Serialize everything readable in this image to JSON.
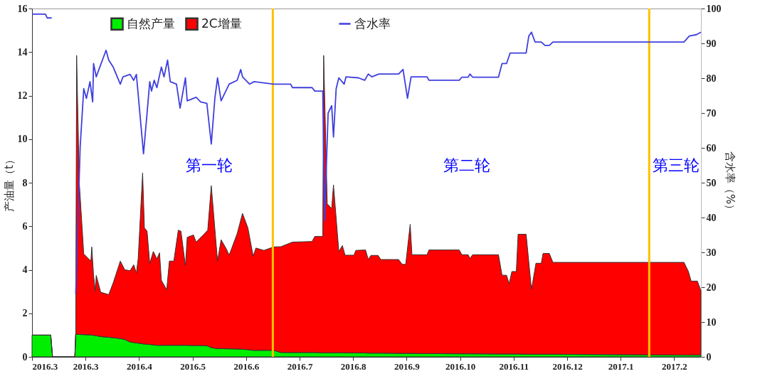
{
  "chart_data": {
    "type": "area",
    "stacked": true,
    "ylabel": "产油量（t）",
    "y2label": "含水率（%）",
    "x": [
      "2016-03-01",
      "2016-03-11T12:00",
      "2016-03-12T12:00",
      "2016-03-25",
      "2016-03-25T12:00",
      "2016-03-26",
      "2016-03-27T12:00",
      "2016-03-30",
      "2016-04-03",
      "2016-04-03T12:00",
      "2016-04-04T12:00",
      "2016-04-05T12:00",
      "2016-04-06",
      "2016-04-08T12:00",
      "2016-04-13",
      "2016-04-15T12:00",
      "2016-04-19T12:00",
      "2016-04-22",
      "2016-04-25",
      "2016-04-27",
      "2016-04-28T12:00",
      "2016-04-29T12:00",
      "2016-05-02",
      "2016-05-03",
      "2016-05-04T12:00",
      "2016-05-06",
      "2016-05-08",
      "2016-05-10",
      "2016-05-11T12:00",
      "2016-05-12T12:00",
      "2016-05-15T12:00",
      "2016-05-17",
      "2016-05-19T12:00",
      "2016-05-22",
      "2016-05-23T12:00",
      "2016-05-26",
      "2016-05-27",
      "2016-05-30T12:00",
      "2016-06-01",
      "2016-06-05",
      "2016-06-07T12:00",
      "2016-06-09T12:00",
      "2016-06-13",
      "2016-06-15",
      "2016-06-18",
      "2016-06-19T12:00",
      "2016-06-24",
      "2016-06-27",
      "2016-06-30",
      "2016-07-03",
      "2016-07-04T12:00",
      "2016-07-09",
      "2016-07-14T12:00",
      "2016-07-18T12:00",
      "2016-07-25",
      "2016-08-05",
      "2016-08-06T12:00",
      "2016-08-11",
      "2016-08-11T12:00",
      "2016-08-13T12:00",
      "2016-08-16",
      "2016-08-17",
      "2016-08-20",
      "2016-08-22",
      "2016-08-23T12:00",
      "2016-08-28T12:00",
      "2016-08-29T12:00",
      "2016-09-04",
      "2016-09-05T12:00",
      "2016-09-07",
      "2016-09-11",
      "2016-09-12T12:00",
      "2016-09-22T12:00",
      "2016-09-24T12:00",
      "2016-09-26T12:00",
      "2016-09-29",
      "2016-09-30",
      "2016-10-08T12:00",
      "2016-10-09T12:00",
      "2016-10-26T12:00",
      "2016-10-28",
      "2016-10-31T12:00",
      "2016-11-01T12:00",
      "2016-11-03",
      "2016-11-17T12:00",
      "2016-11-19T12:00",
      "2016-11-22",
      "2016-11-23T12:00",
      "2016-11-25",
      "2016-11-27T12:00",
      "2016-11-28T12:00",
      "2016-12-03",
      "2016-12-06",
      "2016-12-08T12:00",
      "2016-12-11T12:00",
      "2016-12-12T12:00",
      "2016-12-16",
      "2016-12-18",
      "2017-03-01T12:00",
      "2017-03-04",
      "2017-03-05T12:00",
      "2017-03-09",
      "2017-03-11"
    ],
    "series": [
      {
        "name": "自然产量",
        "color": "#00ee00",
        "values": [
          1.0,
          1.0,
          0,
          0,
          1.04,
          1.04,
          1.03,
          1.02,
          1.01,
          1.0,
          0.99,
          0.98,
          0.97,
          0.93,
          0.9,
          0.88,
          0.84,
          0.8,
          0.68,
          0.66,
          0.64,
          0.63,
          0.6,
          0.59,
          0.58,
          0.57,
          0.55,
          0.53,
          0.53,
          0.53,
          0.53,
          0.53,
          0.53,
          0.53,
          0.53,
          0.53,
          0.53,
          0.52,
          0.52,
          0.52,
          0.5,
          0.42,
          0.38,
          0.38,
          0.37,
          0.37,
          0.36,
          0.35,
          0.33,
          0.3,
          0.3,
          0.3,
          0.3,
          0.2,
          0.2,
          0.2,
          0.2,
          0.19,
          0.19,
          0.19,
          0.19,
          0.19,
          0.19,
          0.19,
          0.19,
          0.18,
          0.18,
          0.18,
          0.17,
          0.17,
          0.17,
          0.17,
          0.16,
          0.16,
          0.16,
          0.16,
          0.16,
          0.15,
          0.15,
          0.14,
          0.14,
          0.14,
          0.14,
          0.14,
          0.13,
          0.13,
          0.13,
          0.13,
          0.13,
          0.13,
          0.13,
          0.12,
          0.12,
          0.12,
          0.12,
          0.12,
          0.12,
          0.12,
          0.08,
          0.08,
          0.08,
          0.08,
          0.08
        ]
      },
      {
        "name": "2C增量",
        "color": "#ff0000",
        "values": [
          0,
          0,
          0,
          0,
          0,
          12.81,
          6.97,
          3.71,
          3.39,
          4.05,
          2.75,
          2.04,
          2.77,
          2.04,
          1.96,
          2.52,
          3.56,
          3.2,
          3.28,
          3.57,
          3.21,
          3.87,
          7.85,
          5.34,
          5.19,
          3.72,
          4.29,
          3.97,
          4.25,
          2.99,
          2.55,
          3.87,
          3.87,
          5.29,
          5.24,
          3.65,
          4.96,
          5.08,
          4.75,
          5.08,
          5.32,
          7.44,
          4.02,
          5.0,
          4.58,
          4.3,
          5.3,
          6.24,
          5.6,
          4.32,
          4.7,
          4.59,
          4.75,
          4.86,
          5.07,
          5.1,
          5.33,
          5.34,
          13.66,
          6.84,
          6.62,
          7.71,
          4.65,
          4.92,
          4.48,
          4.49,
          4.71,
          4.73,
          4.3,
          4.49,
          4.49,
          4.3,
          4.31,
          4.09,
          4.09,
          5.93,
          4.53,
          4.54,
          4.76,
          4.77,
          4.55,
          4.55,
          4.38,
          4.55,
          4.56,
          3.62,
          3.62,
          3.23,
          3.79,
          3.79,
          5.5,
          5.51,
          2.97,
          4.18,
          4.18,
          4.63,
          4.63,
          4.22,
          4.26,
          3.84,
          3.4,
          3.4,
          2.96
        ]
      },
      {
        "name": "含水率",
        "type": "line",
        "axis": "y2",
        "color": "#3f3fdf",
        "x": [
          "2016-03-01",
          "2016-03-08T12:00",
          "2016-03-09T12:00",
          "2016-03-12",
          "2016-03-19",
          "2016-03-25T12:00",
          "2016-03-28",
          "2016-03-30",
          "2016-03-31T12:00",
          "2016-04-02T12:00",
          "2016-04-04",
          "2016-04-04T12:00",
          "2016-04-06",
          "2016-04-08",
          "2016-04-11T12:00",
          "2016-04-13",
          "2016-04-15T12:00",
          "2016-04-19T12:00",
          "2016-04-21",
          "2016-04-25",
          "2016-04-27",
          "2016-04-28T12:00",
          "2016-05-02T12:00",
          "2016-05-04T12:00",
          "2016-05-06",
          "2016-05-07",
          "2016-05-08T12:00",
          "2016-05-10",
          "2016-05-12T12:00",
          "2016-05-14",
          "2016-05-16",
          "2016-05-17T12:00",
          "2016-05-21",
          "2016-05-23",
          "2016-05-26",
          "2016-05-27",
          "2016-06-01",
          "2016-06-03T12:00",
          "2016-06-07",
          "2016-06-09T12:00",
          "2016-06-11T12:00",
          "2016-06-13",
          "2016-06-15",
          "2016-06-19T12:00",
          "2016-06-24",
          "2016-06-26",
          "2016-06-27",
          "2016-07-01",
          "2016-07-03T12:00",
          "2016-07-14T12:00",
          "2016-07-24",
          "2016-07-25",
          "2016-08-05",
          "2016-08-06T12:00",
          "2016-08-11",
          "2016-08-12",
          "2016-08-14",
          "2016-08-16",
          "2016-08-17",
          "2016-08-18T12:00",
          "2016-08-20",
          "2016-08-23",
          "2016-08-24",
          "2016-08-31",
          "2016-09-03T12:00",
          "2016-09-05T12:00",
          "2016-09-07T12:00",
          "2016-09-11T12:00",
          "2016-09-22T12:00",
          "2016-09-25",
          "2016-09-27T12:00",
          "2016-09-29T12:00",
          "2016-10-08T12:00",
          "2016-10-09T12:00",
          "2016-10-26T12:00",
          "2016-10-28",
          "2016-10-31T12:00",
          "2016-11-01T12:00",
          "2016-11-03",
          "2016-11-17T12:00",
          "2016-11-19T12:00",
          "2016-11-22",
          "2016-11-24",
          "2016-12-03",
          "2016-12-04T12:00",
          "2016-12-06",
          "2016-12-08",
          "2016-12-11T12:00",
          "2016-12-13T12:00",
          "2016-12-16",
          "2016-12-18",
          "2017-03-01T12:00",
          "2017-03-04T12:00",
          "2017-03-08T12:00",
          "2017-03-11"
        ],
        "values": [
          98.4,
          98.4,
          97.3,
          97.3,
          null,
          18,
          60.4,
          77,
          74.2,
          79,
          73.2,
          84.2,
          80.4,
          83.2,
          88,
          85.2,
          83.2,
          78.3,
          80.4,
          81.1,
          79.4,
          81.1,
          58.3,
          70,
          79,
          76.3,
          79.4,
          77.3,
          83.2,
          80.4,
          85.2,
          79,
          78.3,
          71.4,
          80.1,
          73.5,
          74.5,
          73.2,
          72.8,
          61.1,
          74.2,
          80.1,
          73.5,
          78.3,
          79.4,
          82.5,
          80.4,
          78.3,
          79,
          78.3,
          78.3,
          77.3,
          77.3,
          76.3,
          76.3,
          39,
          70,
          72.1,
          63.1,
          77,
          80.1,
          78.3,
          80.4,
          80.1,
          79.4,
          81.2,
          80.4,
          81.2,
          81.2,
          82.5,
          74.2,
          80.4,
          80.4,
          79.4,
          79.4,
          80.3,
          80.3,
          81.2,
          80.3,
          80.3,
          84.2,
          84.2,
          87.2,
          87.2,
          92.1,
          93.2,
          90.4,
          90.4,
          89.4,
          89.4,
          90.4,
          90.4,
          92.1,
          92.5,
          93.2
        ]
      }
    ],
    "xlim": [
      "2016-03-01",
      "2017-03-11"
    ],
    "xticks": [
      {
        "value": "2016-03-01",
        "label": "2016.3"
      },
      {
        "value": "2016-03-31",
        "label": "2016.3"
      },
      {
        "value": "2016-04-30",
        "label": "2016.4"
      },
      {
        "value": "2016-05-30",
        "label": "2016.5"
      },
      {
        "value": "2016-06-29",
        "label": "2016.6"
      },
      {
        "value": "2016-07-29",
        "label": "2016.7"
      },
      {
        "value": "2016-08-28",
        "label": "2016.8"
      },
      {
        "value": "2016-09-27",
        "label": "2016.9"
      },
      {
        "value": "2016-10-27",
        "label": "2016.10"
      },
      {
        "value": "2016-11-26",
        "label": "2016.11"
      },
      {
        "value": "2016-12-26",
        "label": "2016.12"
      },
      {
        "value": "2017-01-25",
        "label": "2017.1"
      },
      {
        "value": "2017-02-24",
        "label": "2017.2"
      }
    ],
    "ylim": [
      0,
      16
    ],
    "yticks": [
      0,
      2,
      4,
      6,
      8,
      10,
      12,
      14,
      16
    ],
    "y2lim": [
      0,
      100
    ],
    "y2ticks": [
      0,
      10,
      20,
      30,
      40,
      50,
      60,
      70,
      80,
      90,
      100
    ],
    "ref_lines": [
      {
        "axis": "x",
        "value": "2016-07-14",
        "label": null,
        "color": "#ffc000"
      },
      {
        "axis": "x",
        "value": "2017-02-10",
        "label": null,
        "color": "#ffc000"
      }
    ],
    "annotations": [
      "第一轮",
      "第二轮",
      "第三轮"
    ],
    "legend": "top",
    "grid": false
  }
}
